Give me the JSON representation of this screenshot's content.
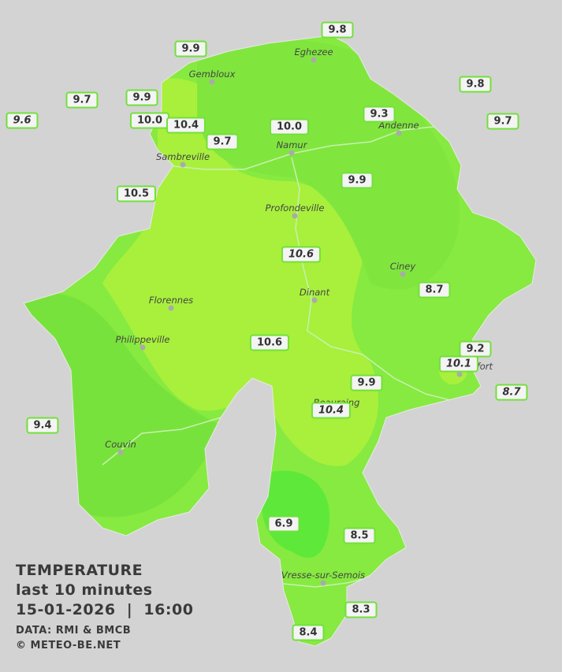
{
  "stations": [
    {
      "label": "9.8"
    },
    {
      "label": "9.9"
    },
    {
      "label": "9.8"
    },
    {
      "label": "9.7"
    },
    {
      "label": "9.9"
    },
    {
      "label": "9.6",
      "italic": true
    },
    {
      "label": "10.0"
    },
    {
      "label": "10.4"
    },
    {
      "label": "9.3"
    },
    {
      "label": "10.0"
    },
    {
      "label": "9.7"
    },
    {
      "label": "9.7"
    },
    {
      "label": "10.5"
    },
    {
      "label": "9.9"
    },
    {
      "label": "10.6",
      "italic": true
    },
    {
      "label": "8.7"
    },
    {
      "label": "10.6"
    },
    {
      "label": "9.2"
    },
    {
      "label": "10.1",
      "italic": true
    },
    {
      "label": "9.9"
    },
    {
      "label": "8.7",
      "italic": true
    },
    {
      "label": "10.4",
      "italic": true
    },
    {
      "label": "9.4"
    },
    {
      "label": "6.9"
    },
    {
      "label": "8.5"
    },
    {
      "label": "8.3"
    },
    {
      "label": "8.4"
    }
  ],
  "cities": [
    "Eghezee",
    "Gembloux",
    "Andenne",
    "Namur",
    "Sambreville",
    "Profondeville",
    "Ciney",
    "Florennes",
    "Dinant",
    "Philippeville",
    "Rochefort",
    "Beauraing",
    "Couvin",
    "Vresse-sur-Semois"
  ],
  "legend": {
    "title": "TEMPERATURE",
    "subtitle": "last 10 minutes",
    "datetime": "15-01-2026  |  16:00",
    "source": "DATA: RMI & BMCB",
    "copyright": "© METEO-BE.NET"
  }
}
